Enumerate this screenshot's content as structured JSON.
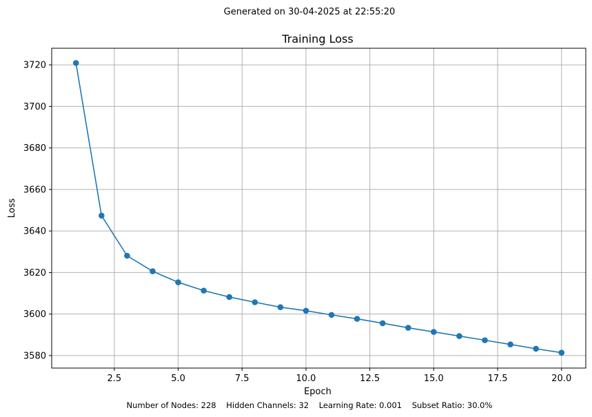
{
  "header": {
    "generated": "Generated on 30-04-2025 at 22:55:20"
  },
  "footer": {
    "params": "Number of Nodes: 228    Hidden Channels: 32    Learning Rate: 0.001    Subset Ratio: 30.0%"
  },
  "colors": {
    "series": "#1f77b4",
    "grid": "#b0b0b0",
    "axis": "#000000"
  },
  "chart_data": {
    "type": "line",
    "title": "Training Loss",
    "xlabel": "Epoch",
    "ylabel": "Loss",
    "xlim": [
      0.05,
      20.95
    ],
    "ylim": [
      3574.0,
      3728.0
    ],
    "xticks": [
      2.5,
      5.0,
      7.5,
      10.0,
      12.5,
      15.0,
      17.5,
      20.0
    ],
    "xtick_labels": [
      "2.5",
      "5.0",
      "7.5",
      "10.0",
      "12.5",
      "15.0",
      "17.5",
      "20.0"
    ],
    "yticks": [
      3580,
      3600,
      3620,
      3640,
      3660,
      3680,
      3700,
      3720
    ],
    "ytick_labels": [
      "3580",
      "3600",
      "3620",
      "3640",
      "3660",
      "3680",
      "3700",
      "3720"
    ],
    "grid": true,
    "marker": "circle",
    "series": [
      {
        "name": "Training Loss",
        "x": [
          1,
          2,
          3,
          4,
          5,
          6,
          7,
          8,
          9,
          10,
          11,
          12,
          13,
          14,
          15,
          16,
          17,
          18,
          19,
          20
        ],
        "values": [
          3720.9,
          3647.4,
          3628.1,
          3620.6,
          3615.3,
          3611.3,
          3608.2,
          3605.7,
          3603.3,
          3601.6,
          3599.6,
          3597.7,
          3595.6,
          3593.4,
          3591.4,
          3589.4,
          3587.4,
          3585.4,
          3583.3,
          3581.4
        ]
      }
    ]
  }
}
